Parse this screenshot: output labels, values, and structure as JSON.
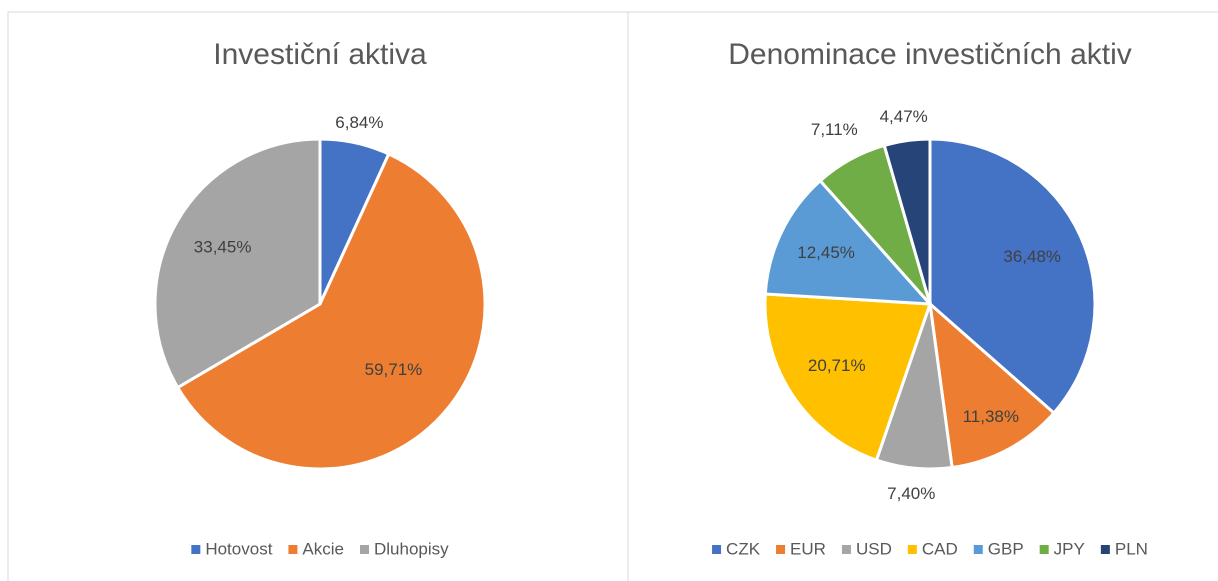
{
  "chart_data": [
    {
      "type": "pie",
      "title": "Investiční aktiva",
      "categories": [
        "Hotovost",
        "Akcie",
        "Dluhopisy"
      ],
      "values": [
        6.84,
        59.71,
        33.45
      ],
      "value_labels": [
        "6,84%",
        "59,71%",
        "33,45%"
      ],
      "colors": [
        "#4472c4",
        "#ed7d31",
        "#a5a5a5"
      ],
      "legend": "bottom"
    },
    {
      "type": "pie",
      "title": "Denominace investičních aktiv",
      "categories": [
        "CZK",
        "EUR",
        "USD",
        "CAD",
        "GBP",
        "JPY",
        "PLN"
      ],
      "values": [
        36.48,
        11.38,
        7.4,
        20.71,
        12.45,
        7.11,
        4.47
      ],
      "value_labels": [
        "36,48%",
        "11,38%",
        "7,40%",
        "20,71%",
        "12,45%",
        "7,11%",
        "4,47%"
      ],
      "colors": [
        "#4472c4",
        "#ed7d31",
        "#a5a5a5",
        "#ffc000",
        "#5b9bd5",
        "#70ad47",
        "#264478"
      ],
      "legend": "bottom"
    }
  ]
}
